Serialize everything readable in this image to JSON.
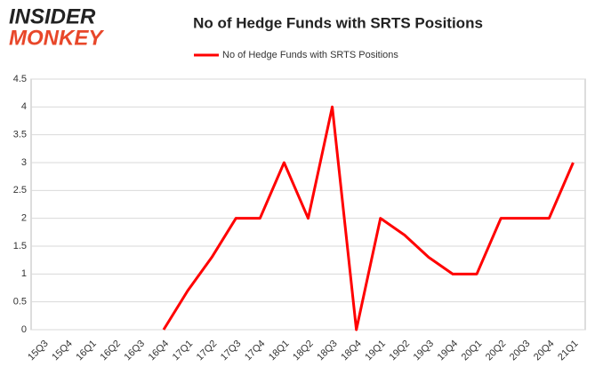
{
  "logo": {
    "top": "INSIDER",
    "bottom": "MONKEY"
  },
  "chart_data": {
    "type": "line",
    "title": "No of Hedge Funds with SRTS Positions",
    "categories": [
      "15Q3",
      "15Q4",
      "16Q1",
      "16Q2",
      "16Q3",
      "16Q4",
      "17Q1",
      "17Q2",
      "17Q3",
      "17Q4",
      "18Q1",
      "18Q2",
      "18Q3",
      "18Q4",
      "19Q1",
      "19Q2",
      "19Q3",
      "19Q4",
      "20Q1",
      "20Q2",
      "20Q3",
      "20Q4",
      "21Q1"
    ],
    "series": [
      {
        "name": "No of Hedge Funds with SRTS Positions",
        "color": "#ff0000",
        "values": [
          null,
          null,
          null,
          null,
          null,
          0,
          0.7,
          1.3,
          2,
          2,
          3,
          2,
          4,
          0,
          2,
          1.7,
          1.3,
          1,
          1,
          2,
          2,
          2,
          3
        ]
      }
    ],
    "ylim": [
      0,
      4.5
    ],
    "yticks": [
      0,
      0.5,
      1,
      1.5,
      2,
      2.5,
      3,
      3.5,
      4,
      4.5
    ],
    "grid": true,
    "legend": "top"
  }
}
